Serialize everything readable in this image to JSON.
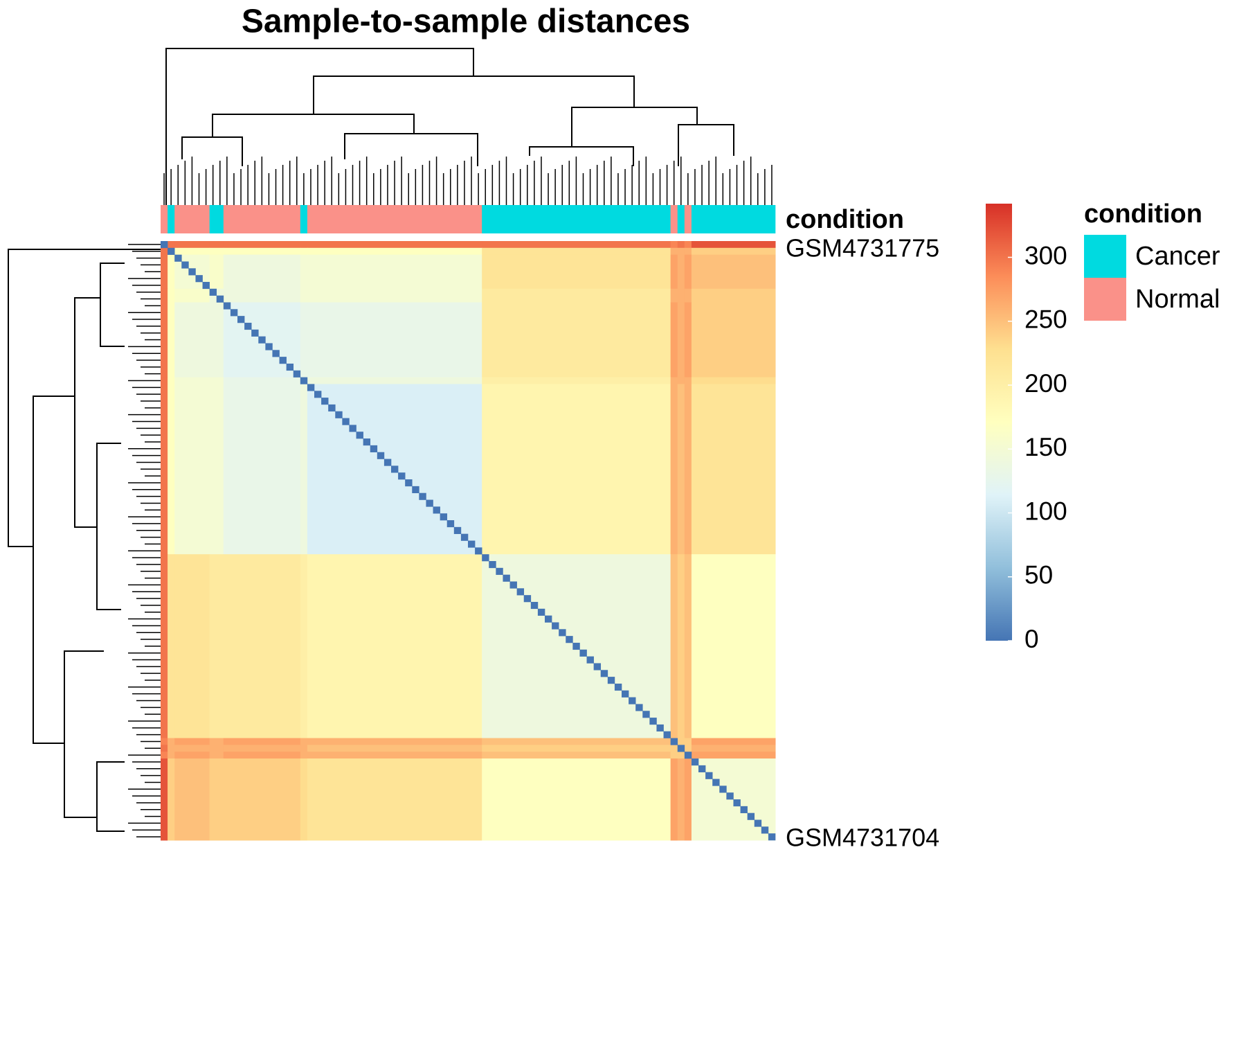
{
  "chart_data": {
    "type": "heatmap",
    "title": "Sample-to-sample distances",
    "annotation_label": "condition",
    "row_label_first": "GSM4731775",
    "row_label_last": "GSM4731704",
    "groups": [
      {
        "condition": "Normal",
        "size": 1
      },
      {
        "condition": "Cancer",
        "size": 1
      },
      {
        "condition": "Normal",
        "size": 5
      },
      {
        "condition": "Cancer",
        "size": 2
      },
      {
        "condition": "Normal",
        "size": 11
      },
      {
        "condition": "Cancer",
        "size": 1
      },
      {
        "condition": "Normal",
        "size": 25
      },
      {
        "condition": "Cancer",
        "size": 27
      },
      {
        "condition": "Normal",
        "size": 1
      },
      {
        "condition": "Cancer",
        "size": 1
      },
      {
        "condition": "Normal",
        "size": 1
      },
      {
        "condition": "Cancer",
        "size": 12
      }
    ],
    "diagonal_value": 0,
    "matrix": [
      [
        null,
        300,
        300,
        300,
        300,
        300,
        300,
        300,
        290,
        300,
        290,
        320
      ],
      [
        300,
        null,
        170,
        170,
        170,
        170,
        170,
        220,
        260,
        260,
        260,
        240
      ],
      [
        300,
        170,
        150,
        160,
        140,
        150,
        150,
        220,
        270,
        260,
        270,
        250
      ],
      [
        300,
        170,
        160,
        140,
        140,
        150,
        150,
        210,
        260,
        260,
        260,
        240
      ],
      [
        300,
        170,
        140,
        140,
        120,
        130,
        130,
        210,
        270,
        260,
        270,
        240
      ],
      [
        300,
        170,
        150,
        150,
        130,
        null,
        140,
        200,
        260,
        260,
        260,
        230
      ],
      [
        300,
        170,
        150,
        150,
        130,
        140,
        110,
        190,
        260,
        250,
        260,
        220
      ],
      [
        300,
        220,
        220,
        210,
        210,
        200,
        190,
        140,
        250,
        240,
        250,
        170
      ],
      [
        290,
        260,
        270,
        260,
        270,
        260,
        260,
        250,
        null,
        240,
        240,
        270
      ],
      [
        300,
        260,
        260,
        260,
        260,
        260,
        250,
        240,
        240,
        null,
        240,
        260
      ],
      [
        290,
        260,
        270,
        260,
        270,
        260,
        260,
        250,
        240,
        240,
        null,
        270
      ],
      [
        320,
        240,
        250,
        240,
        240,
        230,
        220,
        170,
        270,
        260,
        270,
        150
      ]
    ],
    "zlim": [
      0,
      342
    ],
    "zticks": [
      0,
      50,
      100,
      150,
      200,
      250,
      300
    ],
    "colorscale": [
      "#4575B4",
      "#91BFDB",
      "#E0F3F8",
      "#FFFFBF",
      "#FEE090",
      "#FC8D59",
      "#D73027"
    ],
    "legend": {
      "title": "condition",
      "entries": [
        {
          "name": "Cancer",
          "color": "#00DAE0"
        },
        {
          "name": "Normal",
          "color": "#FA9189"
        }
      ]
    }
  }
}
